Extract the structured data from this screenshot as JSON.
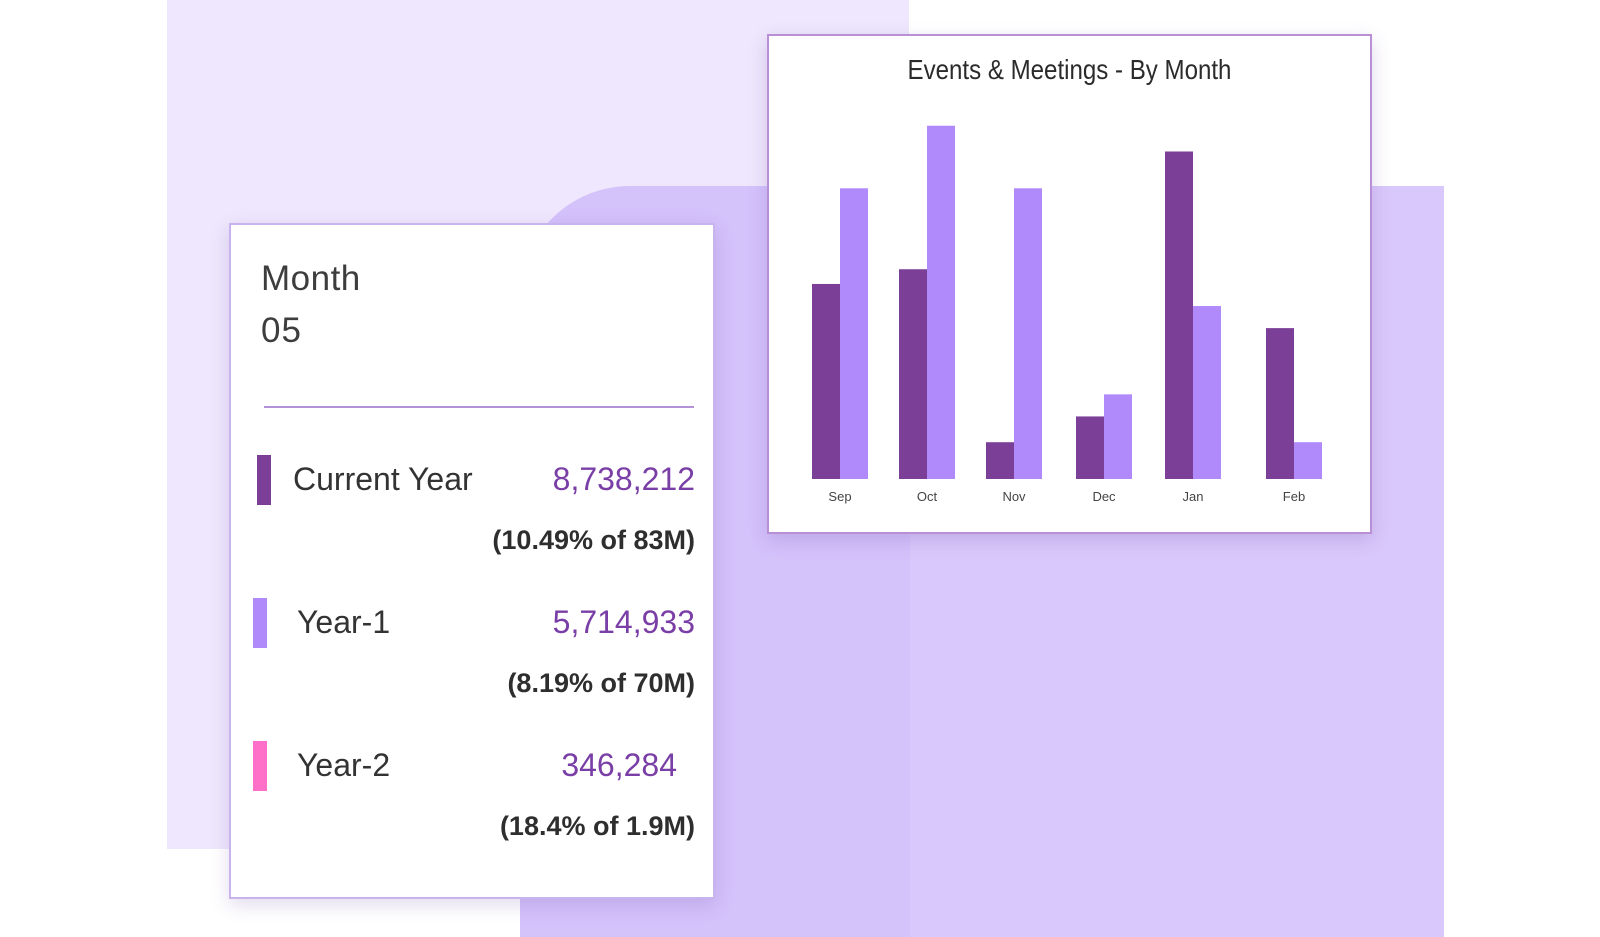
{
  "stats": {
    "month_label": "Month",
    "month_value": "05",
    "rows": [
      {
        "name": "Current Year",
        "value": "8,738,212",
        "pct": "(10.49% of 83M)",
        "color": "#7b3f98"
      },
      {
        "name": "Year-1",
        "value": "5,714,933",
        "pct": "(8.19% of 70M)",
        "color": "#b089fb"
      },
      {
        "name": "Year-2",
        "value": "346,284",
        "pct": "(18.4% of 1.9M)",
        "color": "#ff70c8"
      }
    ]
  },
  "colors": {
    "bg_light": "#efe7fd",
    "bg_mid": "#d4c2fb",
    "accent_text": "#7a3fa6"
  },
  "chart_data": {
    "type": "bar",
    "title": "Events & Meetings - By Month",
    "categories": [
      "Sep",
      "Oct",
      "Nov",
      "Dec",
      "Jan",
      "Feb"
    ],
    "series": [
      {
        "color": "#7b3f98",
        "values": [
          53,
          57,
          10,
          17,
          89,
          41
        ]
      },
      {
        "color": "#b089fb",
        "values": [
          79,
          96,
          79,
          23,
          47,
          10
        ]
      }
    ],
    "ylim": [
      0,
      100
    ],
    "grid": false,
    "legend": "none"
  }
}
